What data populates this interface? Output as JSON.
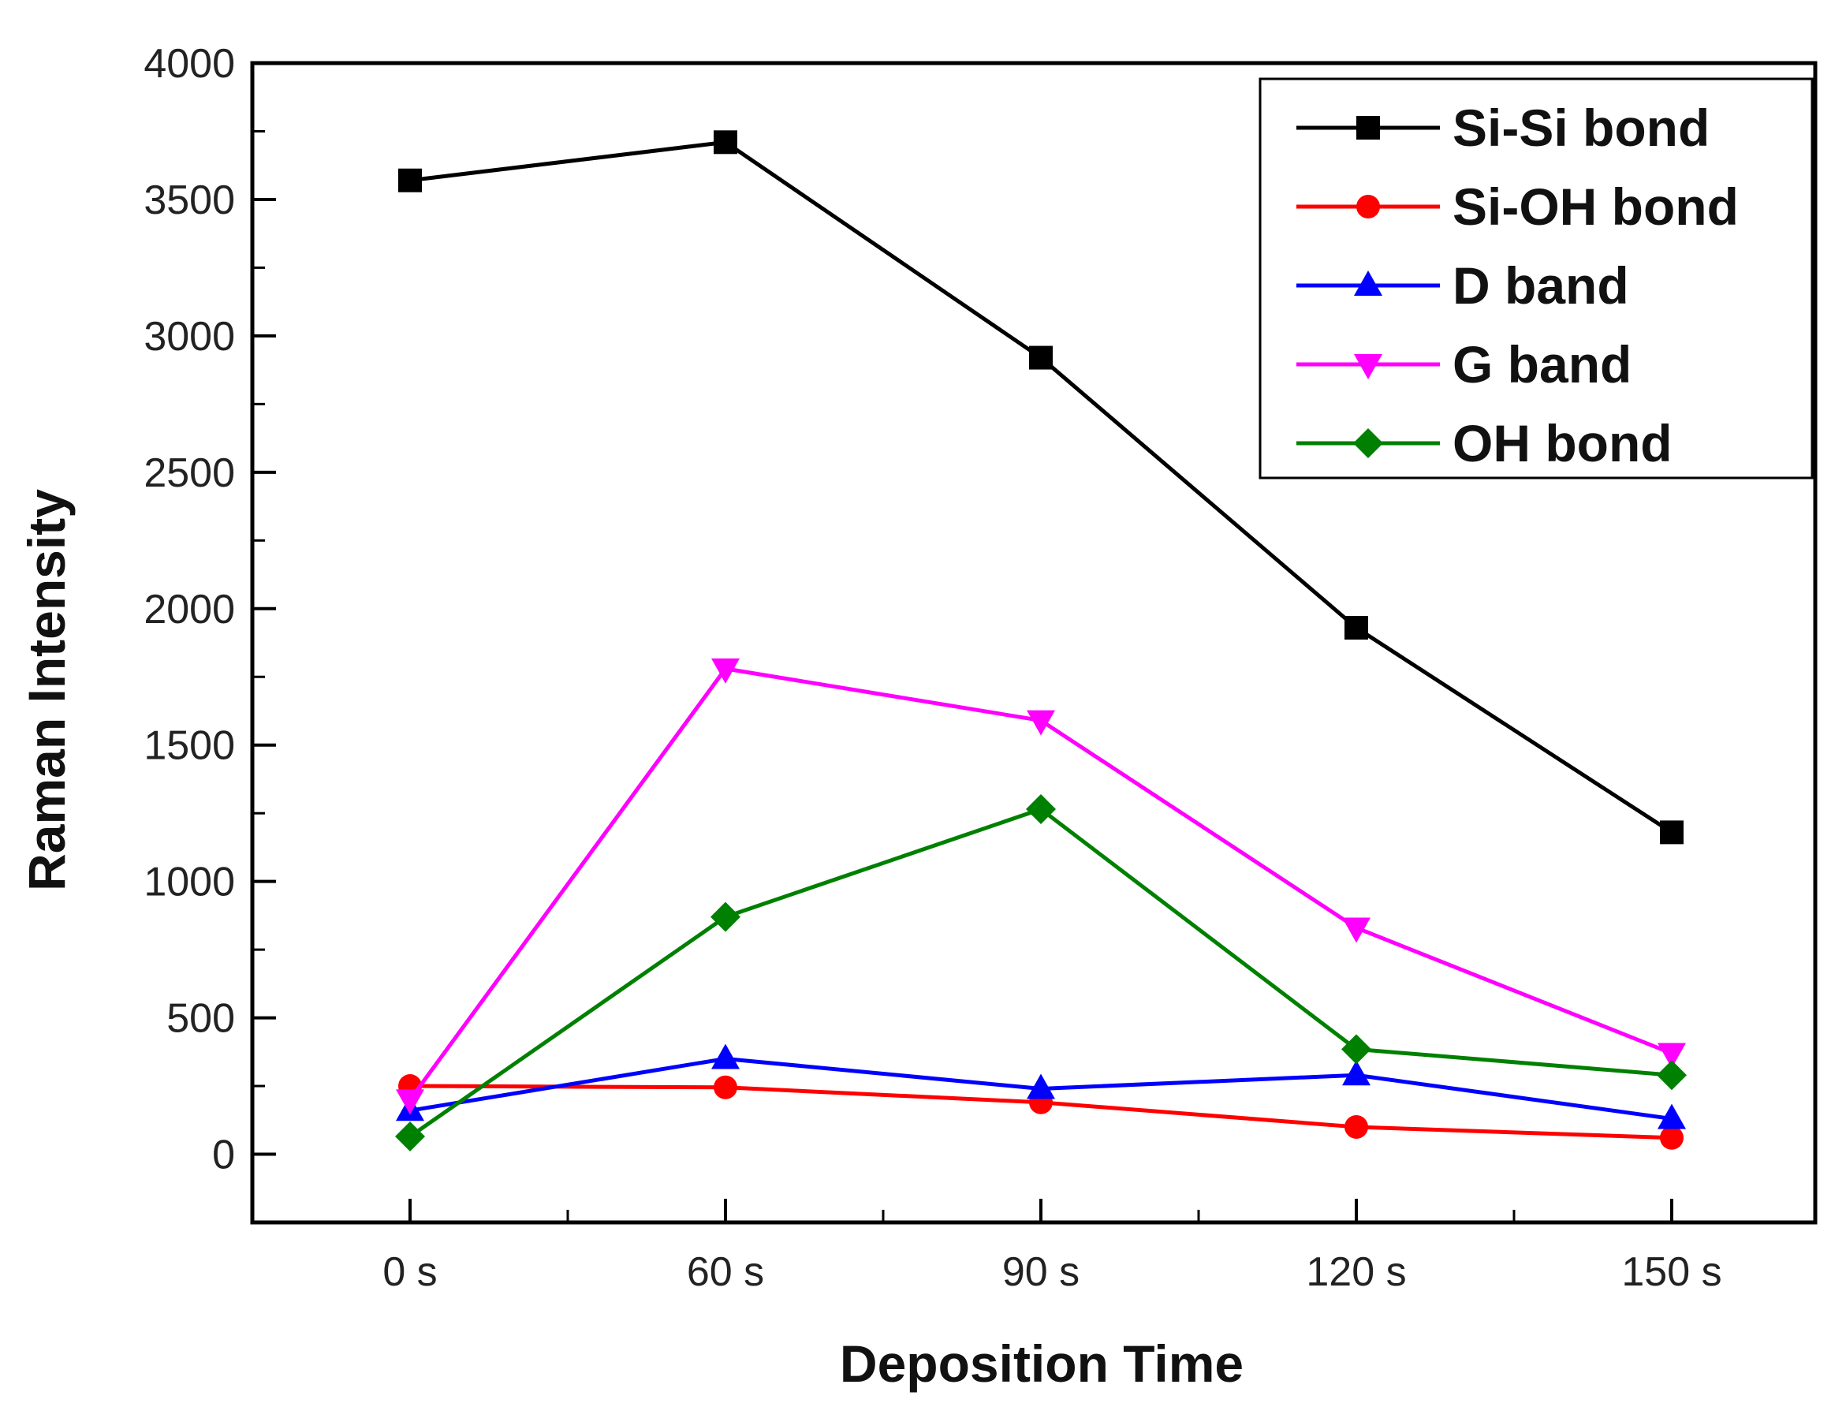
{
  "chart_data": {
    "type": "line",
    "title": "",
    "xlabel": "Deposition Time",
    "ylabel": "Raman Intensity",
    "categories": [
      "0 s",
      "60 s",
      "90 s",
      "120 s",
      "150 s"
    ],
    "ylim": [
      -250,
      4000
    ],
    "yticks": [
      0,
      500,
      1000,
      1500,
      2000,
      2500,
      3000,
      3500,
      4000
    ],
    "yticks_minor": [
      250,
      750,
      1250,
      1750,
      2250,
      2750,
      3250,
      3750
    ],
    "legend_position": "top-right",
    "grid": false,
    "series": [
      {
        "name": "Si-Si bond",
        "color": "#000000",
        "marker": "square",
        "values": [
          3570,
          3710,
          2920,
          1930,
          1180
        ]
      },
      {
        "name": "Si-OH bond",
        "color": "#ff0000",
        "marker": "circle",
        "values": [
          250,
          245,
          190,
          100,
          60
        ]
      },
      {
        "name": "D band",
        "color": "#0000ff",
        "marker": "triangle-up",
        "values": [
          160,
          350,
          240,
          290,
          130
        ]
      },
      {
        "name": "G band",
        "color": "#ff00ff",
        "marker": "triangle-down",
        "values": [
          200,
          1780,
          1590,
          830,
          370
        ]
      },
      {
        "name": "OH bond",
        "color": "#008000",
        "marker": "diamond",
        "values": [
          65,
          870,
          1265,
          385,
          290
        ]
      }
    ]
  }
}
